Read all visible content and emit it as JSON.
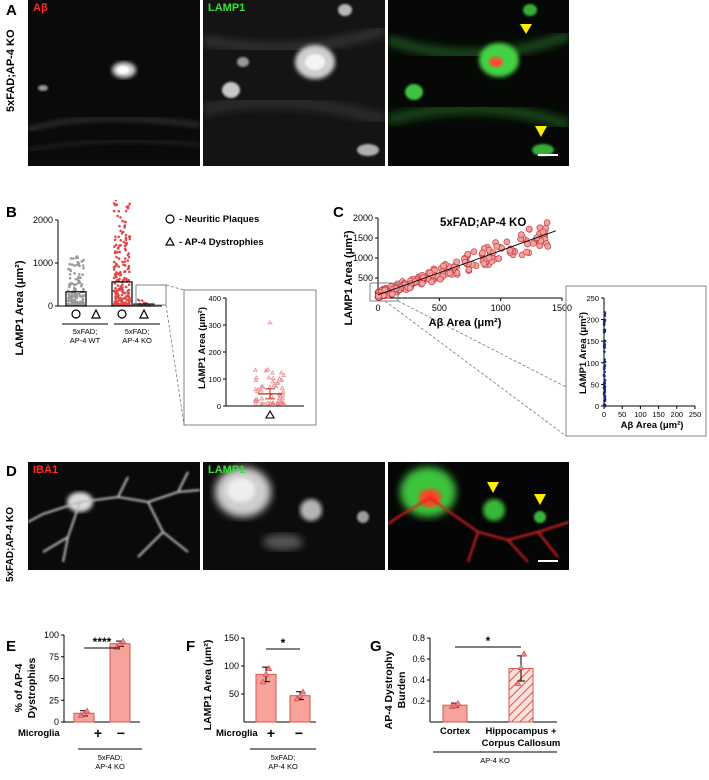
{
  "figure": {
    "panels": {
      "A": {
        "letter": "A",
        "row_label": "5xFAD;AP-4 KO",
        "channels": [
          "Aβ",
          "LAMP1"
        ],
        "channel_colors": {
          "abeta": "#ff2a2a",
          "lamp1": "#38e038"
        }
      },
      "B": {
        "letter": "B",
        "legend": {
          "plaques": "- Neuritic Plaques",
          "dystrophies": "- AP-4 Dystrophies"
        },
        "ylabel": "LAMP1 Area (μm²)",
        "inset_ylabel": "LAMP1 Area (μm²)",
        "groups": [
          "5xFAD;",
          "AP-4 WT",
          "5xFAD;",
          "AP-4 KO"
        ]
      },
      "C": {
        "letter": "C",
        "title": "5xFAD;AP-4 KO",
        "xlabel": "Aβ Area (μm²)",
        "ylabel": "LAMP1 Area (μm²)"
      },
      "D": {
        "letter": "D",
        "row_label": "5xFAD;AP-4 KO",
        "channels": [
          "IBA1",
          "LAMP1"
        ],
        "channel_colors": {
          "iba1": "#ff2a2a",
          "lamp1": "#38e038"
        }
      },
      "E": {
        "letter": "E",
        "ylabel_1": "% of AP-4",
        "ylabel_2": "Dystrophies",
        "sig": "****",
        "row_label": "Microglia",
        "symbols": [
          "+",
          "−"
        ],
        "group_1": "5xFAD;",
        "group_2": "AP-4 KO"
      },
      "F": {
        "letter": "F",
        "ylabel": "LAMP1 Area (μm²)",
        "sig": "*",
        "row_label": "Microglia",
        "symbols": [
          "+",
          "−"
        ],
        "group_1": "5xFAD;",
        "group_2": "AP-4 KO"
      },
      "G": {
        "letter": "G",
        "ylabel_1": "AP-4 Dystrophy",
        "ylabel_2": "Burden",
        "sig": "*",
        "cat_1": "Cortex",
        "cat_2a": "Hippocampus +",
        "cat_2b": "Corpus Callosum",
        "group": "AP-4 KO"
      }
    }
  },
  "chart_data": [
    {
      "id": "B",
      "type": "bar",
      "categories": [
        "AP-4 WT plaques",
        "AP-4 WT dystrophies",
        "AP-4 KO plaques",
        "AP-4 KO dystrophies"
      ],
      "values": [
        330,
        0,
        560,
        45
      ],
      "ylim": [
        0,
        2000
      ],
      "yticks": [
        "0",
        "1000",
        "2000"
      ],
      "ylabel": "LAMP1 Area (μm²)"
    },
    {
      "id": "B-inset",
      "type": "scatter",
      "mean": 45,
      "ylim": [
        0,
        400
      ],
      "yticks": [
        "0",
        "100",
        "200",
        "300",
        "400"
      ],
      "ylabel": "LAMP1 Area (μm²)"
    },
    {
      "id": "C",
      "type": "scatter",
      "title": "5xFAD;AP-4 KO",
      "xlim": [
        0,
        1500
      ],
      "ylim": [
        0,
        2000
      ],
      "xticks": [
        "0",
        "500",
        "1000",
        "1500"
      ],
      "yticks": [
        "500",
        "1000",
        "1500",
        "2000"
      ],
      "xlabel": "Aβ Area (μm²)",
      "ylabel": "LAMP1 Area (μm²)",
      "fit": {
        "x": [
          0,
          1450
        ],
        "y": [
          80,
          1680
        ]
      }
    },
    {
      "id": "C-inset",
      "type": "scatter",
      "xlim": [
        0,
        250
      ],
      "ylim": [
        0,
        250
      ],
      "xticks": [
        "0",
        "50",
        "100",
        "150",
        "200",
        "250"
      ],
      "yticks": [
        "0",
        "50",
        "100",
        "150",
        "200",
        "250"
      ],
      "xlabel": "Aβ Area (μm²)",
      "ylabel": "LAMP1 Area (μm²)"
    },
    {
      "id": "E",
      "type": "bar",
      "categories": [
        "+",
        "−"
      ],
      "values": [
        10,
        90
      ],
      "errors": [
        3,
        3
      ],
      "points": [
        [
          8,
          10,
          13
        ],
        [
          86,
          90,
          93
        ]
      ],
      "ylim": [
        0,
        100
      ],
      "yticks": [
        "0",
        "25",
        "50",
        "75",
        "100"
      ]
    },
    {
      "id": "F",
      "type": "bar",
      "categories": [
        "+",
        "−"
      ],
      "values": [
        85,
        47
      ],
      "errors": [
        13,
        7
      ],
      "points": [
        [
          72,
          86,
          96
        ],
        [
          42,
          47,
          54
        ]
      ],
      "ylim": [
        0,
        150
      ],
      "yticks": [
        "50",
        "100",
        "150"
      ]
    },
    {
      "id": "G",
      "type": "bar",
      "categories": [
        "Cortex",
        "Hippocampus + Corpus Callosum"
      ],
      "values": [
        0.16,
        0.51
      ],
      "errors": [
        0.02,
        0.12
      ],
      "points": [
        [
          0.15,
          0.16,
          0.18
        ],
        [
          0.37,
          0.52,
          0.65
        ]
      ],
      "ylim": [
        0,
        0.8
      ],
      "yticks": [
        "0.2",
        "0.4",
        "0.6",
        "0.8"
      ]
    }
  ]
}
